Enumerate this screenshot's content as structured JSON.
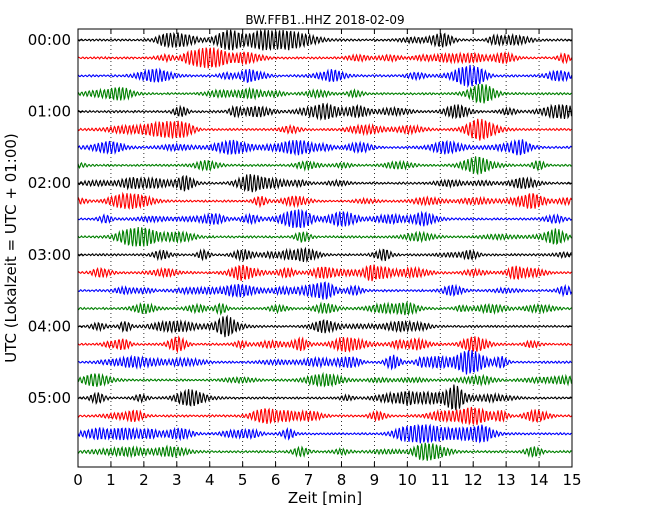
{
  "chart_data": {
    "type": "line",
    "title": "BW.FFB1..HHZ 2018-02-09",
    "xlabel": "Zeit  [min]",
    "ylabel": "UTC (Lokalzeit = UTC + 01:00)",
    "xlim": [
      0,
      15
    ],
    "x_ticks": [
      "0",
      "1",
      "2",
      "3",
      "4",
      "5",
      "6",
      "7",
      "8",
      "9",
      "10",
      "11",
      "12",
      "13",
      "14",
      "15"
    ],
    "y_ticks": [
      "00:00",
      "01:00",
      "02:00",
      "03:00",
      "04:00",
      "05:00"
    ],
    "grid": "vertical dotted lines at each minute",
    "trace_colors": [
      "#000000",
      "#ff0000",
      "#0000ff",
      "#008000"
    ],
    "trace_count": 24,
    "trace_interval_minutes": 15
  }
}
